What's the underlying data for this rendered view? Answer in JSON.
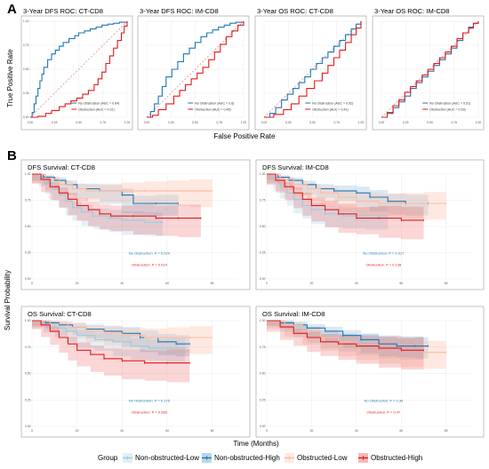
{
  "panel_labels": [
    "A",
    "B"
  ],
  "colors": {
    "blue": "#1f77b4",
    "red": "#e31a1c",
    "light_blue": "#9ecae1",
    "light_red": "#fcbba1",
    "diag": "#e08080",
    "panel_bg": "#ffffff",
    "grid": "#ebebeb",
    "border": "#9a9a9a"
  },
  "roc": {
    "xlabel": "False Positive Rate",
    "ylabel": "True Positive Rate",
    "x_ticks": [
      "0.00",
      "0.25",
      "0.50",
      "0.75",
      "1.00"
    ],
    "y_ticks": [
      "0.00",
      "0.25",
      "0.50",
      "0.75",
      "1.00"
    ]
  },
  "survival": {
    "xlabel": "Time (Months)",
    "ylabel": "Survival Probability",
    "x_ticks": [
      "0",
      "20",
      "40",
      "60",
      "80"
    ],
    "y_ticks": [
      "0.00",
      "0.25",
      "0.50",
      "0.75",
      "1.00"
    ]
  },
  "legend": {
    "title": "Group",
    "items": [
      "Non-obstructed-Low",
      "Non-obstructed-High",
      "Obstructed-Low",
      "Obstructed-High"
    ]
  },
  "chart_data": [
    {
      "type": "line",
      "title": "3-Year DFS ROC: CT-CD8",
      "xlim": [
        0,
        1
      ],
      "ylim": [
        0,
        1
      ],
      "series": [
        {
          "name": "No Obstruction (AUC = 0.64)",
          "x": [
            0,
            0.02,
            0.04,
            0.06,
            0.08,
            0.1,
            0.12,
            0.14,
            0.18,
            0.22,
            0.26,
            0.3,
            0.34,
            0.4,
            0.46,
            0.5,
            0.56,
            0.62,
            0.68,
            0.74,
            0.8,
            0.86,
            0.92,
            1
          ],
          "y": [
            0,
            0.05,
            0.14,
            0.22,
            0.3,
            0.38,
            0.45,
            0.52,
            0.6,
            0.66,
            0.7,
            0.74,
            0.78,
            0.82,
            0.85,
            0.88,
            0.9,
            0.92,
            0.94,
            0.96,
            0.97,
            0.98,
            0.99,
            1
          ]
        },
        {
          "name": "Obstruction (AUC = 0.31)",
          "x": [
            0,
            0.08,
            0.16,
            0.22,
            0.3,
            0.36,
            0.42,
            0.48,
            0.54,
            0.6,
            0.66,
            0.7,
            0.74,
            0.78,
            0.82,
            0.86,
            0.9,
            0.94,
            0.97,
            1
          ],
          "y": [
            0,
            0.01,
            0.04,
            0.07,
            0.11,
            0.14,
            0.17,
            0.2,
            0.24,
            0.28,
            0.34,
            0.4,
            0.47,
            0.56,
            0.64,
            0.72,
            0.8,
            0.88,
            0.95,
            1
          ]
        }
      ]
    },
    {
      "type": "line",
      "title": "3-Year DFS ROC: IM-CD8",
      "xlim": [
        0,
        1
      ],
      "ylim": [
        0,
        1
      ],
      "series": [
        {
          "name": "No Obstruction (AUC = 0.6)",
          "x": [
            0,
            0.04,
            0.08,
            0.12,
            0.16,
            0.2,
            0.26,
            0.32,
            0.38,
            0.44,
            0.5,
            0.56,
            0.62,
            0.68,
            0.74,
            0.8,
            0.86,
            0.92,
            1
          ],
          "y": [
            0,
            0.06,
            0.14,
            0.22,
            0.32,
            0.42,
            0.5,
            0.58,
            0.66,
            0.72,
            0.78,
            0.84,
            0.88,
            0.91,
            0.94,
            0.96,
            0.98,
            0.99,
            1
          ]
        },
        {
          "name": "Obstruction (AUC = 0.46)",
          "x": [
            0,
            0.06,
            0.12,
            0.2,
            0.28,
            0.34,
            0.4,
            0.46,
            0.52,
            0.58,
            0.64,
            0.7,
            0.76,
            0.82,
            0.88,
            0.94,
            1
          ],
          "y": [
            0,
            0.02,
            0.08,
            0.14,
            0.22,
            0.28,
            0.34,
            0.4,
            0.46,
            0.52,
            0.6,
            0.68,
            0.76,
            0.84,
            0.9,
            0.96,
            1
          ]
        }
      ]
    },
    {
      "type": "line",
      "title": "3-Year OS ROC: CT-CD8",
      "xlim": [
        0,
        1
      ],
      "ylim": [
        0,
        1
      ],
      "series": [
        {
          "name": "No Obstruction (AUC = 0.52)",
          "x": [
            0,
            0.06,
            0.12,
            0.18,
            0.24,
            0.3,
            0.36,
            0.42,
            0.48,
            0.54,
            0.6,
            0.66,
            0.72,
            0.78,
            0.84,
            0.9,
            0.95,
            1
          ],
          "y": [
            0,
            0.04,
            0.1,
            0.18,
            0.24,
            0.3,
            0.36,
            0.42,
            0.5,
            0.56,
            0.62,
            0.68,
            0.74,
            0.8,
            0.86,
            0.92,
            0.97,
            1
          ]
        },
        {
          "name": "Obstruction (AUC = 0.41)",
          "x": [
            0,
            0.1,
            0.2,
            0.28,
            0.36,
            0.44,
            0.52,
            0.6,
            0.66,
            0.72,
            0.78,
            0.84,
            0.9,
            0.95,
            1
          ],
          "y": [
            0,
            0.03,
            0.08,
            0.14,
            0.22,
            0.3,
            0.38,
            0.46,
            0.54,
            0.62,
            0.7,
            0.78,
            0.86,
            0.93,
            1
          ]
        }
      ]
    },
    {
      "type": "line",
      "title": "3-Year OS ROC: IM-CD8",
      "xlim": [
        0,
        1
      ],
      "ylim": [
        0,
        1
      ],
      "series": [
        {
          "name": "No Obstruction (AUC = 0.51)",
          "x": [
            0,
            0.06,
            0.12,
            0.18,
            0.24,
            0.3,
            0.36,
            0.42,
            0.48,
            0.54,
            0.6,
            0.66,
            0.72,
            0.78,
            0.84,
            0.9,
            0.95,
            1
          ],
          "y": [
            0,
            0.05,
            0.1,
            0.16,
            0.22,
            0.3,
            0.36,
            0.42,
            0.48,
            0.54,
            0.6,
            0.66,
            0.72,
            0.8,
            0.88,
            0.94,
            0.98,
            1
          ]
        },
        {
          "name": "Obstruction (AUC = 0.53)",
          "x": [
            0,
            0.06,
            0.12,
            0.18,
            0.24,
            0.3,
            0.36,
            0.42,
            0.48,
            0.54,
            0.6,
            0.66,
            0.72,
            0.78,
            0.84,
            0.9,
            0.95,
            1
          ],
          "y": [
            0,
            0.04,
            0.12,
            0.18,
            0.26,
            0.32,
            0.38,
            0.44,
            0.5,
            0.56,
            0.62,
            0.68,
            0.74,
            0.82,
            0.88,
            0.93,
            0.98,
            1
          ]
        }
      ]
    },
    {
      "type": "line",
      "title": "DFS Survival: CT-CD8",
      "xlim": [
        0,
        92
      ],
      "ylim": [
        0,
        1
      ],
      "annotations": [
        "No Obstruction: P = 0.024",
        "Obstruction: P = 0.014"
      ],
      "series": [
        {
          "name": "Non-obstructed-Low",
          "x": [
            0,
            3,
            6,
            9,
            12,
            15,
            18,
            22,
            27,
            34,
            40,
            50,
            58
          ],
          "y": [
            1,
            0.96,
            0.92,
            0.86,
            0.8,
            0.74,
            0.68,
            0.64,
            0.6,
            0.58,
            0.56,
            0.54,
            0.54
          ]
        },
        {
          "name": "Non-obstructed-High",
          "x": [
            0,
            5,
            10,
            15,
            20,
            30,
            40,
            45,
            55,
            65
          ],
          "y": [
            1,
            0.97,
            0.94,
            0.9,
            0.86,
            0.84,
            0.8,
            0.72,
            0.72,
            0.72
          ]
        },
        {
          "name": "Obstructed-Low",
          "x": [
            0,
            6,
            12,
            18,
            24,
            30,
            40,
            50,
            60,
            70,
            80
          ],
          "y": [
            1,
            0.95,
            0.9,
            0.86,
            0.84,
            0.84,
            0.84,
            0.84,
            0.84,
            0.84,
            0.84
          ]
        },
        {
          "name": "Obstructed-High",
          "x": [
            0,
            4,
            8,
            12,
            16,
            20,
            25,
            30,
            35,
            45,
            55,
            65,
            75
          ],
          "y": [
            1,
            0.95,
            0.88,
            0.82,
            0.76,
            0.7,
            0.66,
            0.62,
            0.6,
            0.6,
            0.58,
            0.58,
            0.58
          ]
        }
      ]
    },
    {
      "type": "line",
      "title": "DFS Survival: IM-CD8",
      "xlim": [
        0,
        92
      ],
      "ylim": [
        0,
        1
      ],
      "annotations": [
        "No Obstruction: P = 0.017",
        "Obstruction: P = 0.138"
      ],
      "series": [
        {
          "name": "Non-obstructed-Low",
          "x": [
            0,
            3,
            6,
            9,
            12,
            16,
            20,
            26,
            34,
            44,
            54
          ],
          "y": [
            1,
            0.94,
            0.88,
            0.82,
            0.76,
            0.7,
            0.66,
            0.62,
            0.6,
            0.6,
            0.6
          ]
        },
        {
          "name": "Non-obstructed-High",
          "x": [
            0,
            5,
            10,
            16,
            22,
            30,
            40,
            46,
            54,
            62,
            72
          ],
          "y": [
            1,
            0.97,
            0.94,
            0.9,
            0.86,
            0.84,
            0.82,
            0.78,
            0.74,
            0.72,
            0.72
          ]
        },
        {
          "name": "Obstructed-Low",
          "x": [
            0,
            6,
            12,
            18,
            24,
            32,
            40,
            50,
            60,
            70,
            80
          ],
          "y": [
            1,
            0.95,
            0.9,
            0.86,
            0.82,
            0.78,
            0.74,
            0.72,
            0.72,
            0.72,
            0.72
          ]
        },
        {
          "name": "Obstructed-High",
          "x": [
            0,
            4,
            8,
            12,
            16,
            20,
            26,
            32,
            40,
            50,
            60,
            70
          ],
          "y": [
            1,
            0.94,
            0.88,
            0.82,
            0.76,
            0.7,
            0.66,
            0.62,
            0.58,
            0.58,
            0.56,
            0.56
          ]
        }
      ]
    },
    {
      "type": "line",
      "title": "OS Survival: CT-CD8",
      "xlim": [
        0,
        92
      ],
      "ylim": [
        0,
        1
      ],
      "annotations": [
        "No Obstruction: P = 0.275",
        "Obstruction: P = 0.085"
      ],
      "series": [
        {
          "name": "Non-obstructed-Low",
          "x": [
            0,
            5,
            10,
            15,
            20,
            28,
            36,
            44,
            52,
            60,
            68
          ],
          "y": [
            1,
            0.97,
            0.93,
            0.9,
            0.86,
            0.82,
            0.8,
            0.76,
            0.74,
            0.74,
            0.74
          ]
        },
        {
          "name": "Non-obstructed-High",
          "x": [
            0,
            6,
            12,
            18,
            24,
            32,
            40,
            48,
            56,
            64,
            70
          ],
          "y": [
            1,
            0.98,
            0.96,
            0.94,
            0.92,
            0.9,
            0.88,
            0.84,
            0.8,
            0.78,
            0.78
          ]
        },
        {
          "name": "Obstructed-Low",
          "x": [
            0,
            8,
            16,
            24,
            32,
            40,
            50,
            60,
            70,
            80
          ],
          "y": [
            1,
            0.97,
            0.94,
            0.9,
            0.88,
            0.86,
            0.84,
            0.84,
            0.84,
            0.84
          ]
        },
        {
          "name": "Obstructed-High",
          "x": [
            0,
            4,
            8,
            12,
            16,
            20,
            26,
            32,
            40,
            50,
            60,
            70
          ],
          "y": [
            1,
            0.96,
            0.9,
            0.84,
            0.78,
            0.72,
            0.68,
            0.64,
            0.62,
            0.6,
            0.6,
            0.6
          ]
        }
      ]
    },
    {
      "type": "line",
      "title": "OS Survival: IM-CD8",
      "xlim": [
        0,
        92
      ],
      "ylim": [
        0,
        1
      ],
      "annotations": [
        "No Obstruction: P = 0.34",
        "Obstruction: P = 0.47"
      ],
      "series": [
        {
          "name": "Non-obstructed-Low",
          "x": [
            0,
            6,
            12,
            18,
            24,
            32,
            40,
            50,
            60,
            70
          ],
          "y": [
            1,
            0.98,
            0.94,
            0.9,
            0.86,
            0.82,
            0.8,
            0.78,
            0.76,
            0.76
          ]
        },
        {
          "name": "Non-obstructed-High",
          "x": [
            0,
            6,
            12,
            18,
            26,
            34,
            42,
            50,
            58,
            66,
            72
          ],
          "y": [
            1,
            0.98,
            0.96,
            0.93,
            0.9,
            0.86,
            0.82,
            0.78,
            0.76,
            0.76,
            0.76
          ]
        },
        {
          "name": "Obstructed-Low",
          "x": [
            0,
            8,
            16,
            24,
            32,
            40,
            50,
            60,
            70,
            80
          ],
          "y": [
            1,
            0.96,
            0.9,
            0.84,
            0.8,
            0.76,
            0.74,
            0.72,
            0.7,
            0.7
          ]
        },
        {
          "name": "Obstructed-High",
          "x": [
            0,
            6,
            12,
            18,
            24,
            32,
            40,
            50,
            60,
            70
          ],
          "y": [
            1,
            0.94,
            0.88,
            0.84,
            0.8,
            0.78,
            0.76,
            0.74,
            0.72,
            0.72
          ]
        }
      ]
    }
  ]
}
